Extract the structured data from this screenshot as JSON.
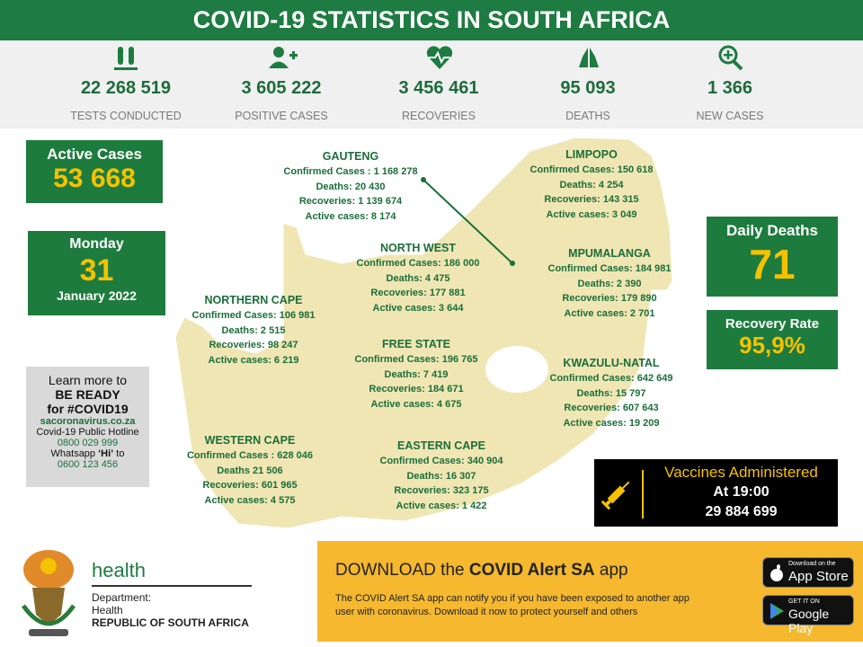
{
  "header": {
    "title": "COVID-19 STATISTICS IN SOUTH AFRICA"
  },
  "stats": [
    {
      "value": "22 268 519",
      "label": "TESTS CONDUCTED"
    },
    {
      "value": "3 605 222",
      "label": "POSITIVE CASES"
    },
    {
      "value": "3 456 461",
      "label": "RECOVERIES"
    },
    {
      "value": "95 093",
      "label": "DEATHS"
    },
    {
      "value": "1 366",
      "label": "NEW CASES"
    }
  ],
  "active_cases": {
    "label": "Active Cases",
    "value": "53 668"
  },
  "date": {
    "weekday": "Monday",
    "day": "31",
    "month_year": "January 2022"
  },
  "learn_more": {
    "line1": "Learn more to",
    "line2": "BE READY",
    "line3": "for #COVID19",
    "website": "sacoronavirus.co.za",
    "hotline_label": "Covid-19 Public Hotline",
    "hotline": "0800 029 999",
    "whatsapp_before": "Whatsapp",
    "whatsapp_bold": "‘Hi’",
    "whatsapp_after": "to",
    "whatsapp_number": "0600 123 456"
  },
  "provinces": [
    {
      "name": "GAUTENG",
      "lines": [
        "Confirmed Cases : 1 168 278",
        "Deaths: 20 430",
        "Recoveries: 1 139 674",
        "Active cases: 8 174"
      ]
    },
    {
      "name": "LIMPOPO",
      "lines": [
        "Confirmed Cases: 150 618",
        "Deaths:  4 254",
        "Recoveries: 143 315",
        "Active cases: 3 049"
      ]
    },
    {
      "name": "NORTH WEST",
      "lines": [
        "Confirmed Cases: 186 000",
        "Deaths:  4 475",
        "Recoveries: 177 881",
        "Active cases: 3 644"
      ]
    },
    {
      "name": "MPUMALANGA",
      "lines": [
        "Confirmed Cases: 184 981",
        "Deaths:  2 390",
        "Recoveries: 179 890",
        "Active cases: 2 701"
      ]
    },
    {
      "name": "NORTHERN CAPE",
      "lines": [
        "Confirmed Cases:  106 981",
        "Deaths: 2 515",
        "Recoveries: 98 247",
        "Active cases: 6 219"
      ]
    },
    {
      "name": "FREE STATE",
      "lines": [
        "Confirmed Cases: 196 765",
        "Deaths: 7 419",
        "Recoveries: 184 671",
        "Active cases: 4 675"
      ]
    },
    {
      "name": "KWAZULU-NATAL",
      "lines": [
        "Confirmed Cases: 642 649",
        "Deaths: 15 797",
        "Recoveries: 607 643",
        "Active cases: 19 209"
      ]
    },
    {
      "name": "WESTERN CAPE",
      "lines": [
        "Confirmed Cases : 628 046",
        "Deaths 21 506",
        "Recoveries: 601 965",
        "Active cases: 4 575"
      ]
    },
    {
      "name": "EASTERN CAPE",
      "lines": [
        "Confirmed Cases: 340 904",
        "Deaths: 16 307",
        "Recoveries: 323 175",
        "Active cases: 1 422"
      ]
    }
  ],
  "daily_deaths": {
    "label": "Daily Deaths",
    "value": "71"
  },
  "recovery_rate": {
    "label": "Recovery Rate",
    "value": "95,9%"
  },
  "vaccines": {
    "title": "Vaccines Administered",
    "time": "At 19:00",
    "value": "29 884 699"
  },
  "footer": {
    "health": "health",
    "department": "Department:",
    "department_name": "Health",
    "country": "REPUBLIC OF SOUTH AFRICA",
    "download_prefix": "DOWNLOAD the",
    "download_app": "COVID Alert SA",
    "download_suffix": "app",
    "description_line1": "The COVID Alert SA app can notify you if you have been exposed to another app",
    "description_line2": "user with coronavirus. Download it now to protect yourself and others",
    "appstore_small": "Download on the",
    "appstore_big": "App Store",
    "googleplay_small": "GET IT ON",
    "googleplay_big": "Google Play"
  }
}
